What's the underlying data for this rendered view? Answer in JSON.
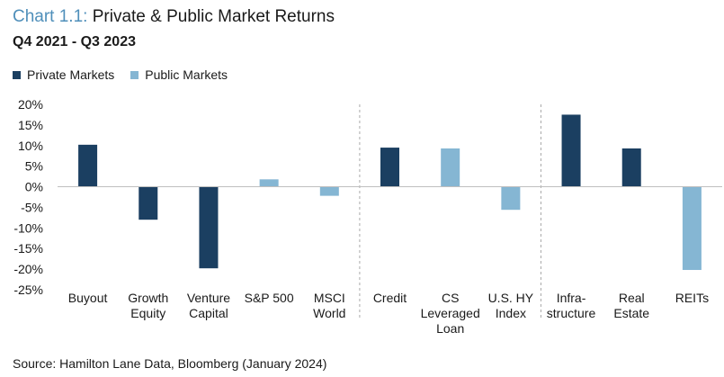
{
  "title_prefix": "Chart 1.1:",
  "title_main": "Private & Public Market Returns",
  "subtitle": "Q4 2021 - Q3 2023",
  "source": "Source: Hamilton Lane Data, Bloomberg (January 2024)",
  "colors": {
    "private": "#1b3f61",
    "public": "#85b6d3",
    "title_accent": "#4f8fba"
  },
  "chart_data": {
    "type": "bar",
    "title": "Chart 1.1: Private & Public Market Returns",
    "subtitle": "Q4 2021 - Q3 2023",
    "ylim": [
      -0.25,
      0.2
    ],
    "yticks": [
      0.2,
      0.15,
      0.1,
      0.05,
      0.0,
      -0.05,
      -0.1,
      -0.15,
      -0.2,
      -0.25
    ],
    "ytick_labels": [
      "20%",
      "15%",
      "10%",
      "5%",
      "0%",
      "-5%",
      "-10%",
      "-15%",
      "-20%",
      "-25%"
    ],
    "grid": false,
    "legend": {
      "placement": "top-left",
      "entries": [
        "Private Markets",
        "Public Markets"
      ]
    },
    "group_dividers_after": [
      4,
      7
    ],
    "categories": [
      {
        "label": "Buyout",
        "value": 0.102,
        "series": "Private Markets"
      },
      {
        "label": "Growth\nEquity",
        "value": -0.08,
        "series": "Private Markets"
      },
      {
        "label": "Venture\nCapital",
        "value": -0.198,
        "series": "Private Markets"
      },
      {
        "label": "S&P 500",
        "value": 0.018,
        "series": "Public Markets"
      },
      {
        "label": "MSCI\nWorld",
        "value": -0.022,
        "series": "Public Markets"
      },
      {
        "label": "Credit",
        "value": 0.095,
        "series": "Private Markets"
      },
      {
        "label": "CS\nLeveraged\nLoan",
        "value": 0.093,
        "series": "Public Markets"
      },
      {
        "label": "U.S. HY\nIndex",
        "value": -0.056,
        "series": "Public Markets"
      },
      {
        "label": "Infra-\nstructure",
        "value": 0.175,
        "series": "Private Markets"
      },
      {
        "label": "Real\nEstate",
        "value": 0.093,
        "series": "Private Markets"
      },
      {
        "label": "REITs",
        "value": -0.202,
        "series": "Public Markets"
      }
    ]
  }
}
